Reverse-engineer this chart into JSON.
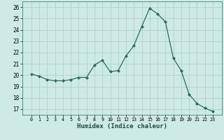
{
  "x": [
    0,
    1,
    2,
    3,
    4,
    5,
    6,
    7,
    8,
    9,
    10,
    11,
    12,
    13,
    14,
    15,
    16,
    17,
    18,
    19,
    20,
    21,
    22,
    23
  ],
  "y": [
    20.1,
    19.9,
    19.6,
    19.5,
    19.5,
    19.6,
    19.8,
    19.8,
    20.9,
    21.3,
    20.3,
    20.4,
    21.7,
    22.6,
    24.3,
    25.9,
    25.4,
    24.7,
    21.5,
    20.4,
    18.3,
    17.5,
    17.1,
    16.8
  ],
  "line_color": "#2d6b5e",
  "marker": "D",
  "markersize": 2.0,
  "linewidth": 0.9,
  "bg_color": "#ceeae6",
  "grid_color": "#b0d0cc",
  "xlabel": "Humidex (Indice chaleur)",
  "xlabel_fontsize": 6.5,
  "tick_fontsize": 5.5,
  "ylim": [
    16.5,
    26.5
  ],
  "yticks": [
    17,
    18,
    19,
    20,
    21,
    22,
    23,
    24,
    25,
    26
  ],
  "xticks": [
    0,
    1,
    2,
    3,
    4,
    5,
    6,
    7,
    8,
    9,
    10,
    11,
    12,
    13,
    14,
    15,
    16,
    17,
    18,
    19,
    20,
    21,
    22,
    23
  ]
}
